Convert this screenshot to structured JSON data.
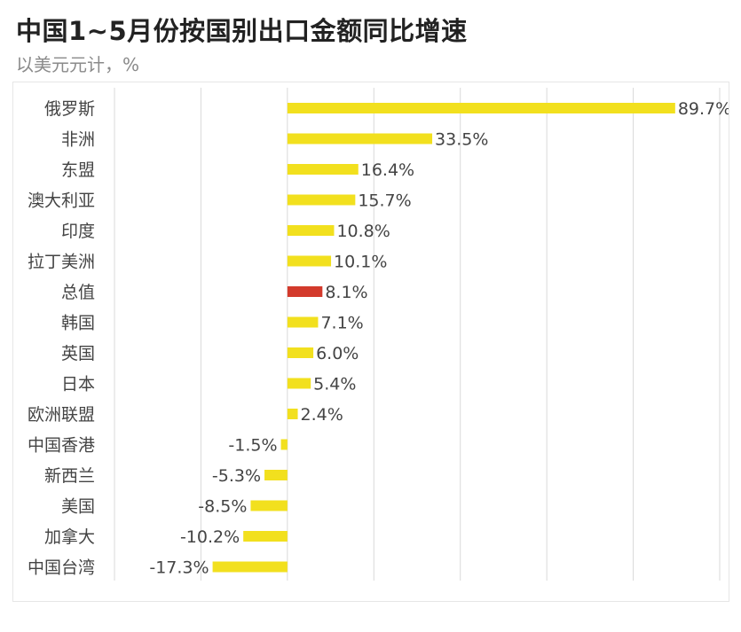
{
  "title": "中国1~5月份按国别出口金额同比增速",
  "subtitle": "以美元元计，%",
  "colors": {
    "bar": "#f2e01e",
    "highlight": "#d33a2c",
    "grid": "#d9d9d9",
    "text": "#444444"
  },
  "chart_data": {
    "type": "bar",
    "orientation": "horizontal",
    "title": "中国1~5月份按国别出口金额同比增速",
    "subtitle": "以美元元计，%",
    "xlabel": "",
    "ylabel": "",
    "xlim": [
      -40,
      100
    ],
    "grid": true,
    "categories": [
      "俄罗斯",
      "非洲",
      "东盟",
      "澳大利亚",
      "印度",
      "拉丁美洲",
      "总值",
      "韩国",
      "英国",
      "日本",
      "欧洲联盟",
      "中国香港",
      "新西兰",
      "美国",
      "加拿大",
      "中国台湾"
    ],
    "values": [
      89.7,
      33.5,
      16.4,
      15.7,
      10.8,
      10.1,
      8.1,
      7.1,
      6.0,
      5.4,
      2.4,
      -1.5,
      -5.3,
      -8.5,
      -10.2,
      -17.3
    ],
    "value_labels": [
      "89.7%",
      "33.5%",
      "16.4%",
      "15.7%",
      "10.8%",
      "10.1%",
      "8.1%",
      "7.1%",
      "6.0%",
      "5.4%",
      "2.4%",
      "-1.5%",
      "-5.3%",
      "-8.5%",
      "-10.2%",
      "-17.3%"
    ],
    "highlight_category": "总值"
  }
}
